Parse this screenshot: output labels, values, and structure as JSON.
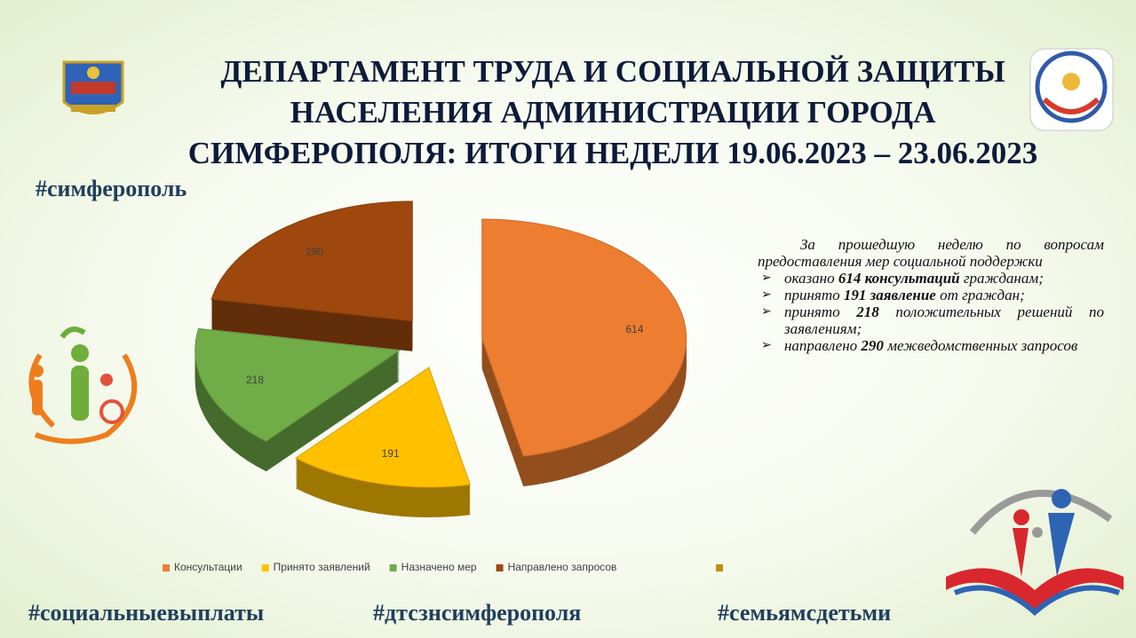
{
  "header": {
    "title_lines": [
      "ДЕПАРТАМЕНТ ТРУДА И СОЦИАЛЬНОЙ ЗАЩИТЫ",
      "НАСЕЛЕНИЯ АДМИНИСТРАЦИИ ГОРОДА",
      "СИМФЕРОПОЛЯ: ИТОГИ НЕДЕЛИ 19.06.2023 – 23.06.2023"
    ],
    "hashtag": "#симферополь"
  },
  "chart_data": {
    "type": "pie",
    "categories": [
      "Консультации",
      "Принято заявлений",
      "Назначено мер",
      "Направлено запросов"
    ],
    "values": [
      614,
      191,
      218,
      290
    ],
    "colors": [
      "#ed7d31",
      "#ffc000",
      "#70ad47",
      "#9e480e"
    ],
    "legend": "bottom"
  },
  "summary": {
    "intro": "За прошедшую неделю по вопросам предоставления мер социальной поддержки",
    "bullets": [
      [
        "оказано ",
        "614 консультаций",
        " гражданам;"
      ],
      [
        "принято ",
        "191 заявление",
        " от граждан;"
      ],
      [
        "принято ",
        "218",
        " положительных решений по заявлениям;"
      ],
      [
        "направлено ",
        "290",
        " межведомственных запросов"
      ]
    ]
  },
  "footer": [
    "#социальныевыплаты",
    "#дтсзнсимферополя",
    "#семьямсдетьми"
  ]
}
